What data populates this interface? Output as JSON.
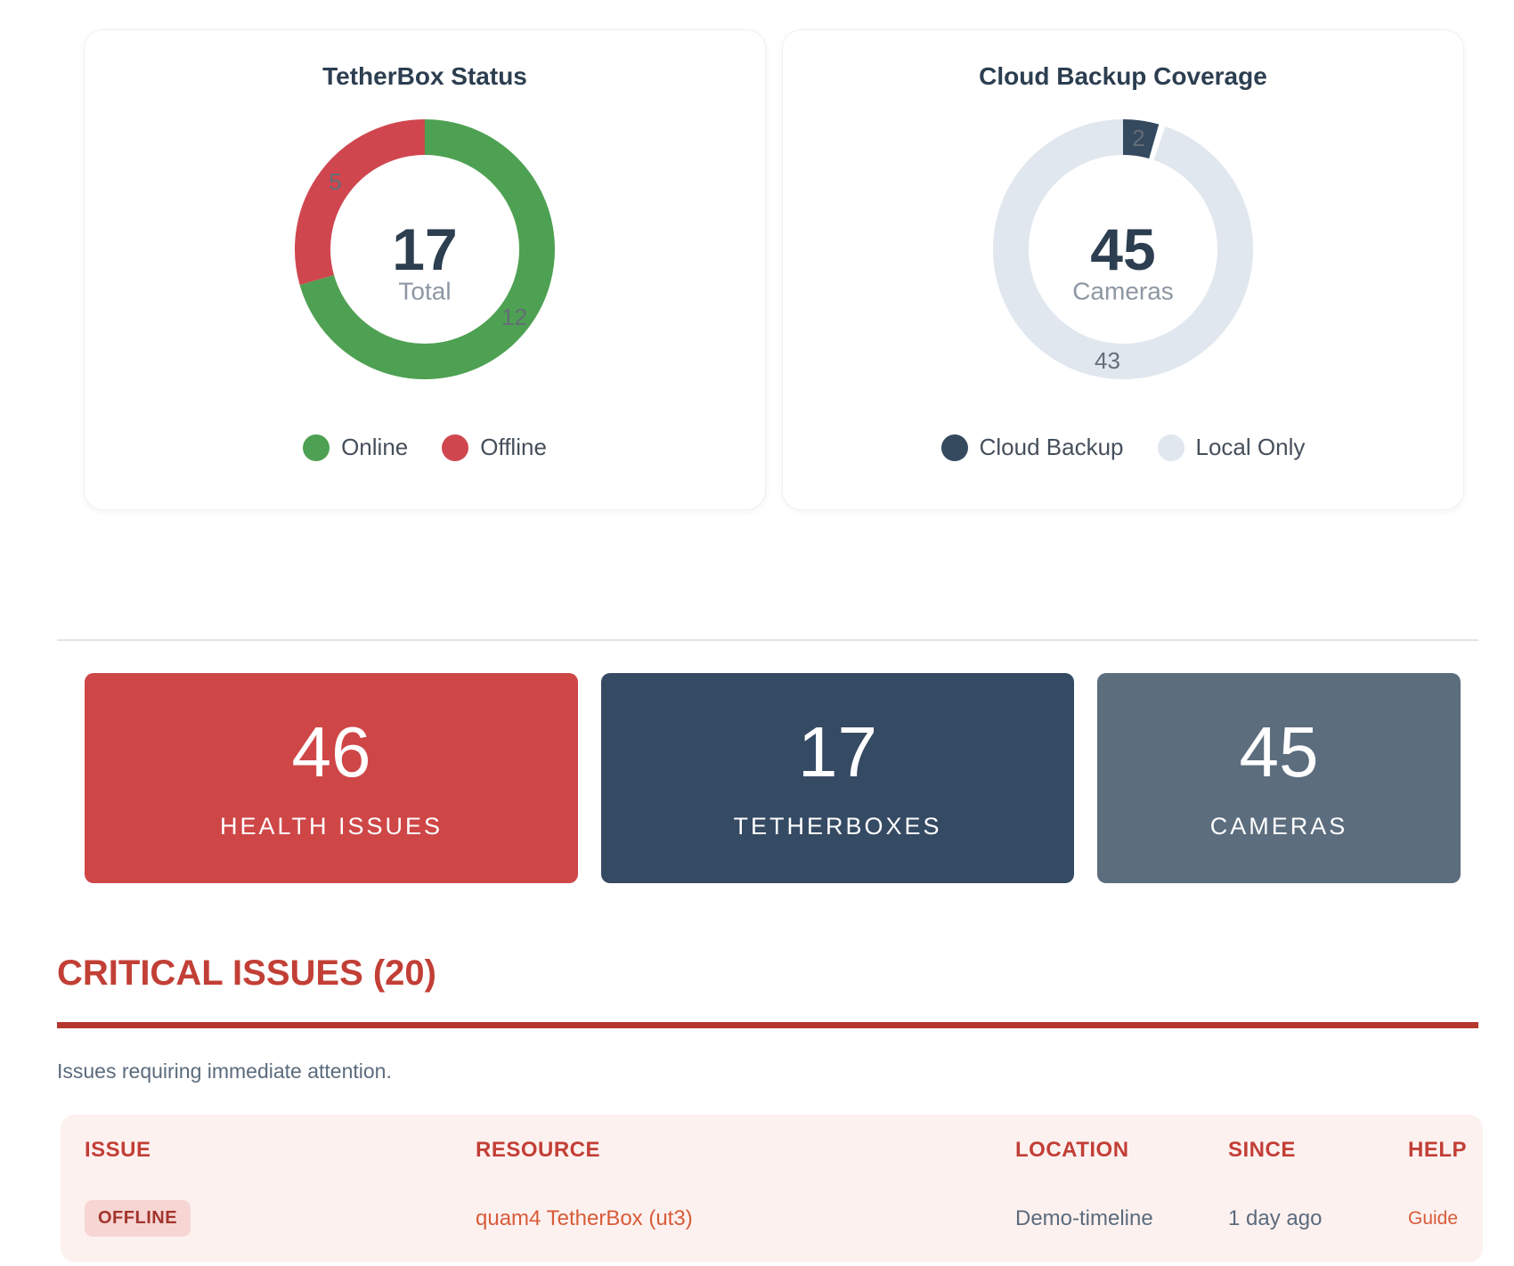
{
  "cards": [
    {
      "title": "TetherBox Status",
      "center_value": "17",
      "center_label": "Total",
      "legend": [
        {
          "label": "Online",
          "color": "#4ea152"
        },
        {
          "label": "Offline",
          "color": "#d0464f"
        }
      ]
    },
    {
      "title": "Cloud Backup Coverage",
      "center_value": "45",
      "center_label": "Cameras",
      "legend": [
        {
          "label": "Cloud Backup",
          "color": "#35495f"
        },
        {
          "label": "Local Only",
          "color": "#e1e7ef"
        }
      ]
    }
  ],
  "chart_data": [
    {
      "type": "pie",
      "donut": true,
      "title": "TetherBox Status",
      "labels": [
        "Online",
        "Offline"
      ],
      "values": [
        12,
        5
      ],
      "colors": [
        "#4ea152",
        "#d0464f"
      ],
      "center_value": 17,
      "center_label": "Total",
      "legend_position": "bottom"
    },
    {
      "type": "pie",
      "donut": true,
      "title": "Cloud Backup Coverage",
      "labels": [
        "Cloud Backup",
        "Local Only"
      ],
      "values": [
        2,
        43
      ],
      "colors": [
        "#35495f",
        "#e1e7ef"
      ],
      "center_value": 45,
      "center_label": "Cameras",
      "legend_position": "bottom"
    }
  ],
  "stats": [
    {
      "value": "46",
      "label": "HEALTH ISSUES",
      "color": "#cf4647"
    },
    {
      "value": "17",
      "label": "TETHERBOXES",
      "color": "#354a63"
    },
    {
      "value": "45",
      "label": "CAMERAS",
      "color": "#5c6d7e"
    }
  ],
  "critical": {
    "heading": "CRITICAL ISSUES (20)",
    "subtext": "Issues requiring immediate attention.",
    "accent_color": "#c23f36",
    "table": {
      "headers": [
        "ISSUE",
        "RESOURCE",
        "LOCATION",
        "SINCE",
        "HELP"
      ],
      "rows": [
        {
          "issue_badge": "OFFLINE",
          "resource": "quam4 TetherBox (ut3)",
          "location": "Demo-timeline",
          "since": "1 day ago",
          "help": "Guide"
        }
      ]
    }
  }
}
